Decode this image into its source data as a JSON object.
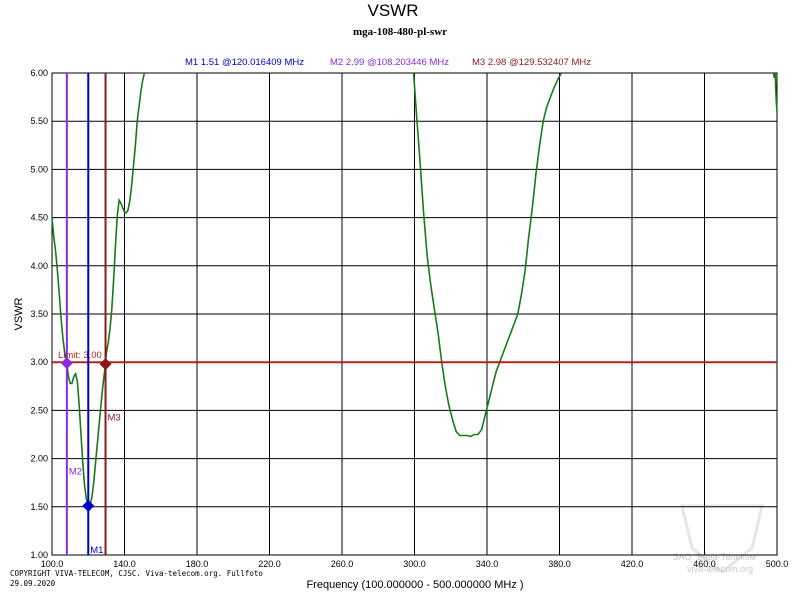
{
  "chart_data": {
    "type": "line",
    "title": "VSWR",
    "subtitle": "mga-108-480-pl-swr",
    "xlabel": "Frequency (100.000000 - 500.000000 MHz )",
    "ylabel": "VSWR",
    "xlim": [
      100,
      500
    ],
    "ylim": [
      1.0,
      6.0
    ],
    "x_ticks": [
      100,
      140,
      180,
      220,
      260,
      300,
      340,
      380,
      420,
      460,
      500
    ],
    "x_tick_labels": [
      "100.0",
      "140.0",
      "180.0",
      "220.0",
      "260.0",
      "300.0",
      "340.0",
      "380.0",
      "420.0",
      "460.0",
      "500.0"
    ],
    "y_ticks": [
      1.0,
      1.5,
      2.0,
      2.5,
      3.0,
      3.5,
      4.0,
      4.5,
      5.0,
      5.5,
      6.0
    ],
    "y_tick_labels": [
      "1.00",
      "1.50",
      "2.00",
      "2.50",
      "3.00",
      "3.50",
      "4.00",
      "4.50",
      "5.00",
      "5.50",
      "6.00"
    ],
    "grid": true,
    "limit": {
      "value": 3.0,
      "label": "Limit: 3.00",
      "color": "#b22222"
    },
    "markers": [
      {
        "id": "M1",
        "x": 120.016409,
        "y": 1.51,
        "color": "#0000cc",
        "label": "M1",
        "readout": "M1   1.51 @120.016409 MHz"
      },
      {
        "id": "M2",
        "x": 108.203446,
        "y": 2.99,
        "color": "#8a2be2",
        "label": "M2",
        "readout": "M2   2.99 @108.203446 MHz"
      },
      {
        "id": "M3",
        "x": 129.532407,
        "y": 2.98,
        "color": "#8b1a1a",
        "label": "M3",
        "readout": "M3   2.98 @129.532407 MHz"
      }
    ],
    "series": [
      {
        "color": "#1a7a1a",
        "segments": [
          [
            [
              100,
              4.5
            ],
            [
              101,
              4.3
            ],
            [
              102,
              4.15
            ],
            [
              103,
              3.95
            ],
            [
              104,
              3.7
            ],
            [
              105,
              3.45
            ],
            [
              106,
              3.25
            ],
            [
              107,
              3.1
            ],
            [
              108.2,
              2.99
            ],
            [
              109,
              2.86
            ],
            [
              110,
              2.78
            ],
            [
              111,
              2.78
            ],
            [
              112,
              2.85
            ],
            [
              113,
              2.88
            ],
            [
              114,
              2.8
            ],
            [
              115,
              2.55
            ],
            [
              116,
              2.25
            ],
            [
              117,
              1.95
            ],
            [
              118,
              1.72
            ],
            [
              119,
              1.58
            ],
            [
              120,
              1.51
            ],
            [
              121,
              1.52
            ],
            [
              122,
              1.6
            ],
            [
              123,
              1.75
            ],
            [
              124,
              1.95
            ],
            [
              125,
              2.15
            ],
            [
              126,
              2.35
            ],
            [
              127,
              2.55
            ],
            [
              128,
              2.75
            ],
            [
              129.5,
              2.98
            ],
            [
              130,
              3.1
            ],
            [
              131,
              3.2
            ],
            [
              132,
              3.35
            ],
            [
              133,
              3.55
            ],
            [
              134,
              3.85
            ],
            [
              135,
              4.2
            ],
            [
              136,
              4.52
            ],
            [
              137,
              4.68
            ],
            [
              138,
              4.65
            ],
            [
              139,
              4.6
            ],
            [
              140,
              4.56
            ],
            [
              141,
              4.55
            ],
            [
              142,
              4.58
            ],
            [
              143,
              4.68
            ],
            [
              144,
              4.85
            ],
            [
              145,
              5.05
            ],
            [
              146,
              5.25
            ],
            [
              147,
              5.5
            ],
            [
              148,
              5.65
            ],
            [
              149,
              5.8
            ],
            [
              150,
              5.92
            ],
            [
              151,
              6.0
            ]
          ],
          [
            [
              299.5,
              6.0
            ],
            [
              301,
              5.6
            ],
            [
              303,
              5.1
            ],
            [
              305,
              4.55
            ],
            [
              307,
              4.1
            ],
            [
              309,
              3.8
            ],
            [
              311,
              3.55
            ],
            [
              313,
              3.3
            ],
            [
              315,
              3.0
            ],
            [
              317,
              2.75
            ],
            [
              319,
              2.55
            ],
            [
              321,
              2.4
            ],
            [
              323,
              2.28
            ],
            [
              325,
              2.24
            ],
            [
              327,
              2.24
            ],
            [
              329,
              2.24
            ],
            [
              331,
              2.23
            ],
            [
              333,
              2.25
            ],
            [
              335,
              2.25
            ],
            [
              337,
              2.3
            ],
            [
              339,
              2.45
            ],
            [
              341,
              2.6
            ],
            [
              343,
              2.75
            ],
            [
              345,
              2.9
            ],
            [
              347,
              3.0
            ],
            [
              349,
              3.1
            ],
            [
              351,
              3.2
            ],
            [
              353,
              3.3
            ],
            [
              355,
              3.4
            ],
            [
              357,
              3.5
            ],
            [
              359,
              3.7
            ],
            [
              361,
              3.95
            ],
            [
              363,
              4.3
            ],
            [
              365,
              4.6
            ],
            [
              367,
              4.95
            ],
            [
              369,
              5.25
            ],
            [
              371,
              5.5
            ],
            [
              373,
              5.65
            ],
            [
              375,
              5.75
            ],
            [
              377,
              5.85
            ],
            [
              379,
              5.93
            ],
            [
              381,
              6.0
            ]
          ],
          [
            [
              498,
              6.0
            ],
            [
              498.5,
              5.95
            ],
            [
              499,
              6.0
            ],
            [
              499.3,
              5.85
            ],
            [
              499.6,
              5.7
            ],
            [
              500,
              5.6
            ]
          ]
        ]
      }
    ]
  },
  "footer": {
    "copyright_line1": "COPYRIGHT VIVA-TELECOM, CJSC. Viva-telecom.org. Fullfoto",
    "copyright_line2": "29.09.2020"
  },
  "watermark": {
    "line1": "ЗАО \"Вива-Телеком\"",
    "line2": "viva-telecom.org"
  }
}
